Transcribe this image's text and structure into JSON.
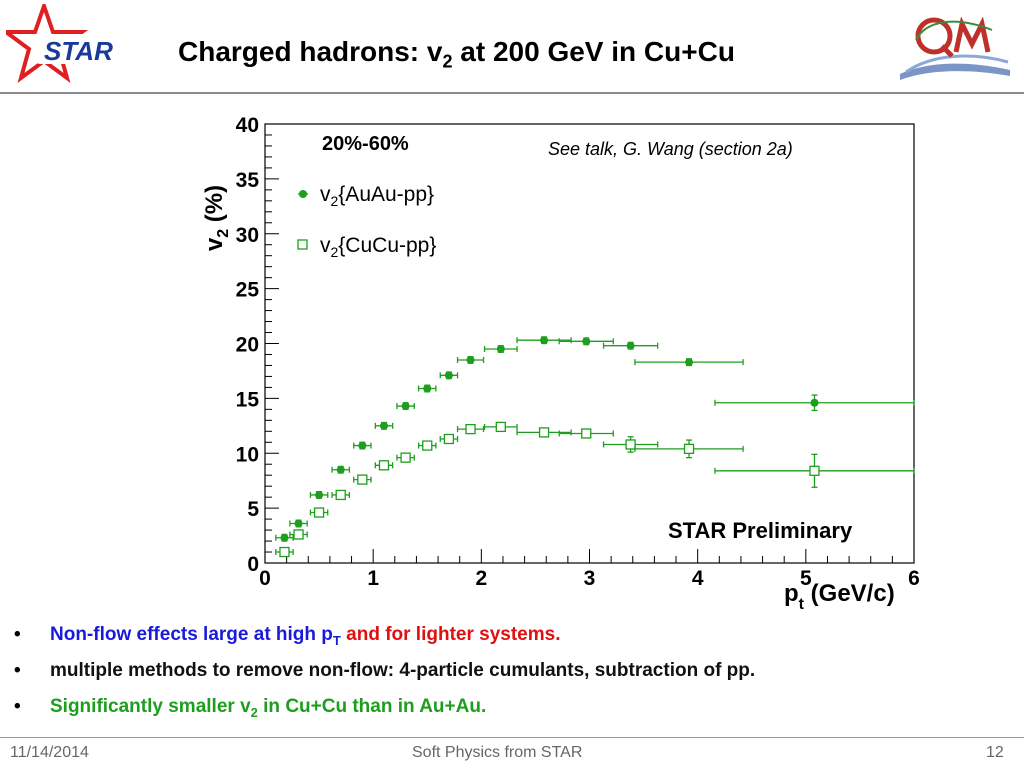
{
  "header": {
    "logo_text": "STAR",
    "title_pre": "Charged hadrons: v",
    "title_sub": "2",
    "title_post": " at 200 GeV in Cu+Cu"
  },
  "chart_data": {
    "type": "scatter",
    "centrality_label": "20%-60%",
    "annotation": "See talk, G. Wang (section 2a)",
    "watermark": "STAR Preliminary",
    "ylabel_main": "v",
    "ylabel_sub": "2",
    "ylabel_post": " (%)",
    "xlabel_main": "p",
    "xlabel_sub": "t",
    "xlabel_post": " (GeV/c)",
    "xlim": [
      0,
      6
    ],
    "ylim": [
      0,
      40
    ],
    "xticks": [
      0,
      1,
      2,
      3,
      4,
      5,
      6
    ],
    "yticks": [
      0,
      5,
      10,
      15,
      20,
      25,
      30,
      35,
      40
    ],
    "color": "#1e9e1e",
    "series": [
      {
        "name_main": "v",
        "name_sub": "2",
        "name_post": "{AuAu-pp}",
        "marker": "filled-circle",
        "points": [
          {
            "x": 0.18,
            "y": 2.3,
            "xerr": 0.08,
            "yerr": 0.3
          },
          {
            "x": 0.31,
            "y": 3.6,
            "xerr": 0.08,
            "yerr": 0.3
          },
          {
            "x": 0.5,
            "y": 6.2,
            "xerr": 0.08,
            "yerr": 0.3
          },
          {
            "x": 0.7,
            "y": 8.5,
            "xerr": 0.08,
            "yerr": 0.3
          },
          {
            "x": 0.9,
            "y": 10.7,
            "xerr": 0.08,
            "yerr": 0.3
          },
          {
            "x": 1.1,
            "y": 12.5,
            "xerr": 0.08,
            "yerr": 0.3
          },
          {
            "x": 1.3,
            "y": 14.3,
            "xerr": 0.08,
            "yerr": 0.3
          },
          {
            "x": 1.5,
            "y": 15.9,
            "xerr": 0.08,
            "yerr": 0.3
          },
          {
            "x": 1.7,
            "y": 17.1,
            "xerr": 0.08,
            "yerr": 0.3
          },
          {
            "x": 1.9,
            "y": 18.5,
            "xerr": 0.12,
            "yerr": 0.3
          },
          {
            "x": 2.18,
            "y": 19.5,
            "xerr": 0.15,
            "yerr": 0.3
          },
          {
            "x": 2.58,
            "y": 20.3,
            "xerr": 0.25,
            "yerr": 0.3
          },
          {
            "x": 2.97,
            "y": 20.2,
            "xerr": 0.25,
            "yerr": 0.3
          },
          {
            "x": 3.38,
            "y": 19.8,
            "xerr": 0.25,
            "yerr": 0.3
          },
          {
            "x": 3.92,
            "y": 18.3,
            "xerr": 0.5,
            "yerr": 0.3
          },
          {
            "x": 5.08,
            "y": 14.6,
            "xerr": 0.92,
            "yerr": 0.7
          }
        ]
      },
      {
        "name_main": "v",
        "name_sub": "2",
        "name_post": "{CuCu-pp}",
        "marker": "open-square",
        "points": [
          {
            "x": 0.18,
            "y": 1.0,
            "xerr": 0.08,
            "yerr": 0.3
          },
          {
            "x": 0.31,
            "y": 2.6,
            "xerr": 0.08,
            "yerr": 0.3
          },
          {
            "x": 0.5,
            "y": 4.6,
            "xerr": 0.08,
            "yerr": 0.3
          },
          {
            "x": 0.7,
            "y": 6.2,
            "xerr": 0.08,
            "yerr": 0.3
          },
          {
            "x": 0.9,
            "y": 7.6,
            "xerr": 0.08,
            "yerr": 0.3
          },
          {
            "x": 1.1,
            "y": 8.9,
            "xerr": 0.08,
            "yerr": 0.3
          },
          {
            "x": 1.3,
            "y": 9.6,
            "xerr": 0.08,
            "yerr": 0.3
          },
          {
            "x": 1.5,
            "y": 10.7,
            "xerr": 0.08,
            "yerr": 0.3
          },
          {
            "x": 1.7,
            "y": 11.3,
            "xerr": 0.08,
            "yerr": 0.3
          },
          {
            "x": 1.9,
            "y": 12.2,
            "xerr": 0.12,
            "yerr": 0.3
          },
          {
            "x": 2.18,
            "y": 12.4,
            "xerr": 0.15,
            "yerr": 0.3
          },
          {
            "x": 2.58,
            "y": 11.9,
            "xerr": 0.25,
            "yerr": 0.3
          },
          {
            "x": 2.97,
            "y": 11.8,
            "xerr": 0.25,
            "yerr": 0.3
          },
          {
            "x": 3.38,
            "y": 10.8,
            "xerr": 0.25,
            "yerr": 0.7
          },
          {
            "x": 3.92,
            "y": 10.4,
            "xerr": 0.5,
            "yerr": 0.8
          },
          {
            "x": 5.08,
            "y": 8.4,
            "xerr": 0.92,
            "yerr": 1.5
          }
        ]
      }
    ]
  },
  "bullets": [
    {
      "pre": "Non-flow effects large at high p",
      "sub": "T",
      "post": " ",
      "extra": "and for lighter systems."
    },
    {
      "text": "multiple methods to remove non-flow: 4-particle cumulants, subtraction of pp."
    },
    {
      "pre": "Significantly smaller v",
      "sub": "2",
      "post": " in Cu+Cu than in Au+Au."
    }
  ],
  "bullet_symbol": "•",
  "footer": {
    "date": "11/14/2014",
    "center": "Soft Physics from STAR",
    "page": "12"
  }
}
